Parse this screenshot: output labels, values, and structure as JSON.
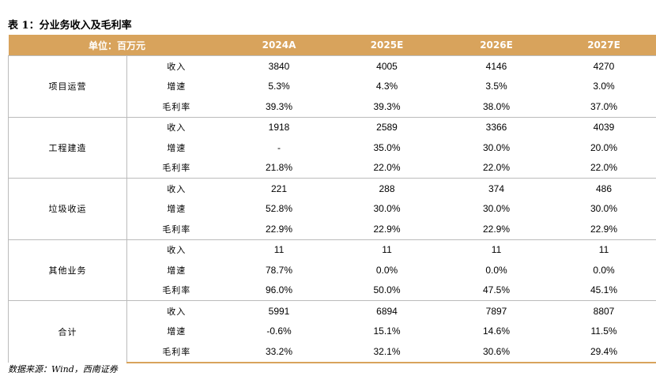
{
  "title": "表 1：分业务收入及毛利率",
  "table": {
    "header": {
      "unit": "单位：百万元",
      "columns": [
        "2024A",
        "2025E",
        "2026E",
        "2027E"
      ]
    },
    "groups": [
      {
        "name": "项目运营",
        "rows": [
          [
            "收入",
            "3840",
            "4005",
            "4146",
            "4270"
          ],
          [
            "增速",
            "5.3%",
            "4.3%",
            "3.5%",
            "3.0%"
          ],
          [
            "毛利率",
            "39.3%",
            "39.3%",
            "38.0%",
            "37.0%"
          ]
        ]
      },
      {
        "name": "工程建造",
        "rows": [
          [
            "收入",
            "1918",
            "2589",
            "3366",
            "4039"
          ],
          [
            "增速",
            "-",
            "35.0%",
            "30.0%",
            "20.0%"
          ],
          [
            "毛利率",
            "21.8%",
            "22.0%",
            "22.0%",
            "22.0%"
          ]
        ]
      },
      {
        "name": "垃圾收运",
        "rows": [
          [
            "收入",
            "221",
            "288",
            "374",
            "486"
          ],
          [
            "增速",
            "52.8%",
            "30.0%",
            "30.0%",
            "30.0%"
          ],
          [
            "毛利率",
            "22.9%",
            "22.9%",
            "22.9%",
            "22.9%"
          ]
        ]
      },
      {
        "name": "其他业务",
        "rows": [
          [
            "收入",
            "11",
            "11",
            "11",
            "11"
          ],
          [
            "增速",
            "78.7%",
            "0.0%",
            "0.0%",
            "0.0%"
          ],
          [
            "毛利率",
            "96.0%",
            "50.0%",
            "47.5%",
            "45.1%"
          ]
        ]
      },
      {
        "name": "合计",
        "rows": [
          [
            "收入",
            "5991",
            "6894",
            "7897",
            "8807"
          ],
          [
            "增速",
            "-0.6%",
            "15.1%",
            "14.6%",
            "11.5%"
          ],
          [
            "毛利率",
            "33.2%",
            "32.1%",
            "30.6%",
            "29.4%"
          ]
        ]
      }
    ]
  },
  "source": "数据来源：Wind，西南证券"
}
